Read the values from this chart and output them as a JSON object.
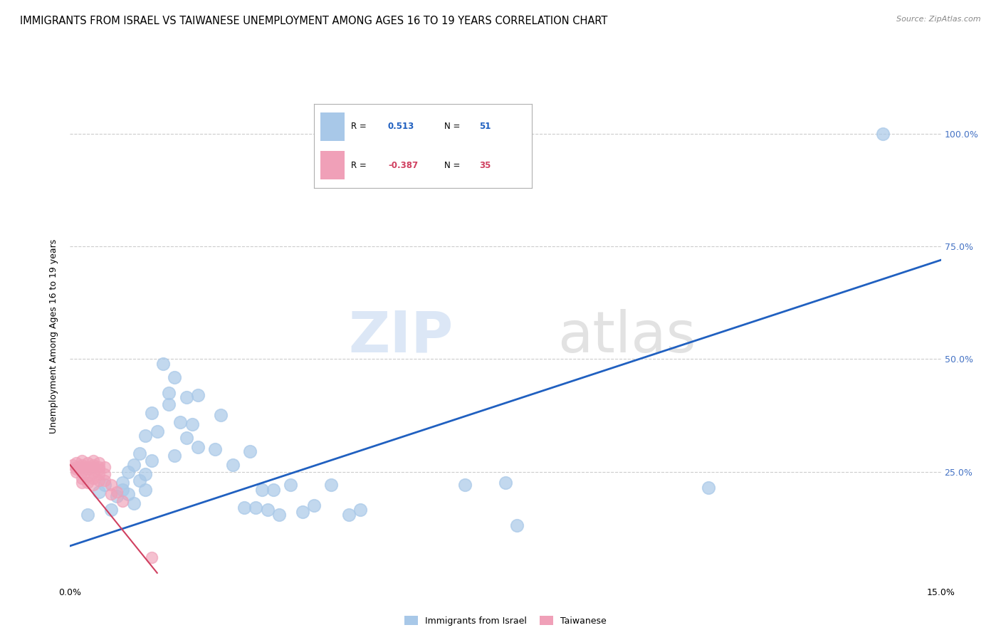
{
  "title": "IMMIGRANTS FROM ISRAEL VS TAIWANESE UNEMPLOYMENT AMONG AGES 16 TO 19 YEARS CORRELATION CHART",
  "source": "Source: ZipAtlas.com",
  "ylabel": "Unemployment Among Ages 16 to 19 years",
  "xlim": [
    0.0,
    0.15
  ],
  "ylim": [
    0.0,
    1.1
  ],
  "ytick_positions": [
    0.25,
    0.5,
    0.75,
    1.0
  ],
  "ytick_right_labels": [
    "25.0%",
    "50.0%",
    "75.0%",
    "100.0%"
  ],
  "xtick_positions": [
    0.0,
    0.15
  ],
  "xtick_labels": [
    "0.0%",
    "15.0%"
  ],
  "legend_blue_r": "R =",
  "legend_blue_r_val": "0.513",
  "legend_blue_n": "N =",
  "legend_blue_n_val": "51",
  "legend_pink_r": "R =",
  "legend_pink_r_val": "-0.387",
  "legend_pink_n": "N =",
  "legend_pink_n_val": "35",
  "blue_color": "#a8c8e8",
  "pink_color": "#f0a0b8",
  "trendline_blue": "#2060c0",
  "trendline_pink": "#d04060",
  "watermark_zip": "ZIP",
  "watermark_atlas": "atlas",
  "blue_scatter_x": [
    0.003,
    0.005,
    0.006,
    0.007,
    0.008,
    0.009,
    0.009,
    0.01,
    0.01,
    0.011,
    0.011,
    0.012,
    0.012,
    0.013,
    0.013,
    0.013,
    0.014,
    0.014,
    0.015,
    0.016,
    0.017,
    0.017,
    0.018,
    0.018,
    0.019,
    0.02,
    0.02,
    0.021,
    0.022,
    0.022,
    0.025,
    0.026,
    0.028,
    0.03,
    0.031,
    0.032,
    0.033,
    0.034,
    0.035,
    0.036,
    0.038,
    0.04,
    0.042,
    0.045,
    0.048,
    0.05,
    0.068,
    0.075,
    0.077,
    0.11,
    0.14
  ],
  "blue_scatter_y": [
    0.155,
    0.205,
    0.22,
    0.165,
    0.195,
    0.225,
    0.21,
    0.25,
    0.2,
    0.265,
    0.18,
    0.29,
    0.23,
    0.21,
    0.33,
    0.245,
    0.38,
    0.275,
    0.34,
    0.49,
    0.425,
    0.4,
    0.46,
    0.285,
    0.36,
    0.325,
    0.415,
    0.355,
    0.305,
    0.42,
    0.3,
    0.375,
    0.265,
    0.17,
    0.295,
    0.17,
    0.21,
    0.165,
    0.21,
    0.155,
    0.22,
    0.16,
    0.175,
    0.22,
    0.155,
    0.165,
    0.22,
    0.225,
    0.13,
    0.215,
    1.0
  ],
  "pink_scatter_x": [
    0.0005,
    0.001,
    0.001,
    0.001,
    0.001,
    0.002,
    0.002,
    0.002,
    0.002,
    0.002,
    0.002,
    0.003,
    0.003,
    0.003,
    0.003,
    0.003,
    0.004,
    0.004,
    0.004,
    0.004,
    0.004,
    0.004,
    0.005,
    0.005,
    0.005,
    0.005,
    0.005,
    0.006,
    0.006,
    0.006,
    0.007,
    0.007,
    0.008,
    0.009,
    0.014
  ],
  "pink_scatter_y": [
    0.265,
    0.27,
    0.26,
    0.255,
    0.25,
    0.26,
    0.275,
    0.265,
    0.25,
    0.235,
    0.225,
    0.26,
    0.27,
    0.255,
    0.24,
    0.225,
    0.265,
    0.275,
    0.26,
    0.248,
    0.235,
    0.22,
    0.255,
    0.27,
    0.26,
    0.245,
    0.23,
    0.26,
    0.245,
    0.23,
    0.22,
    0.2,
    0.205,
    0.185,
    0.06
  ],
  "blue_trend_x": [
    0.0,
    0.15
  ],
  "blue_trend_y": [
    0.085,
    0.72
  ],
  "pink_trend_x": [
    0.0,
    0.015
  ],
  "pink_trend_y": [
    0.265,
    0.025
  ],
  "grid_color": "#cccccc",
  "background_color": "#ffffff",
  "title_fontsize": 10.5,
  "axis_label_fontsize": 9,
  "tick_fontsize": 9,
  "right_tick_color": "#4472c4"
}
